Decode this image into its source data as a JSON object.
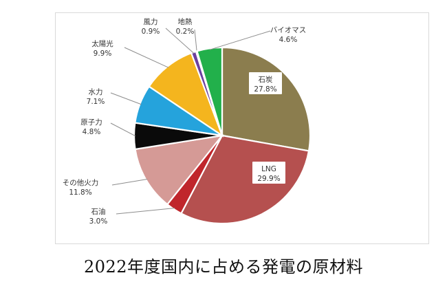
{
  "chart_data": {
    "type": "pie",
    "caption": "2022年度国内に占める発電の原材料",
    "slices": [
      {
        "label": "石炭",
        "value": 27.8,
        "value_label": "27.8%",
        "color": "#8b7d4e"
      },
      {
        "label": "LNG",
        "value": 29.9,
        "value_label": "29.9%",
        "color": "#b5504f"
      },
      {
        "label": "石油",
        "value": 3.0,
        "value_label": "3.0%",
        "color": "#c0262c"
      },
      {
        "label": "その他火力",
        "value": 11.8,
        "value_label": "11.8%",
        "color": "#d59a96"
      },
      {
        "label": "原子力",
        "value": 4.8,
        "value_label": "4.8%",
        "color": "#0a0a0a"
      },
      {
        "label": "水力",
        "value": 7.1,
        "value_label": "7.1%",
        "color": "#25a3dc"
      },
      {
        "label": "太陽光",
        "value": 9.9,
        "value_label": "9.9%",
        "color": "#f4b51e"
      },
      {
        "label": "風力",
        "value": 0.9,
        "value_label": "0.9%",
        "color": "#6b3fa0"
      },
      {
        "label": "地熱",
        "value": 0.2,
        "value_label": "0.2%",
        "color": "#1f8a3f"
      },
      {
        "label": "バイオマス",
        "value": 4.6,
        "value_label": "4.6%",
        "color": "#22b04b"
      }
    ],
    "start_direction": "top, clockwise",
    "legend": "none"
  }
}
